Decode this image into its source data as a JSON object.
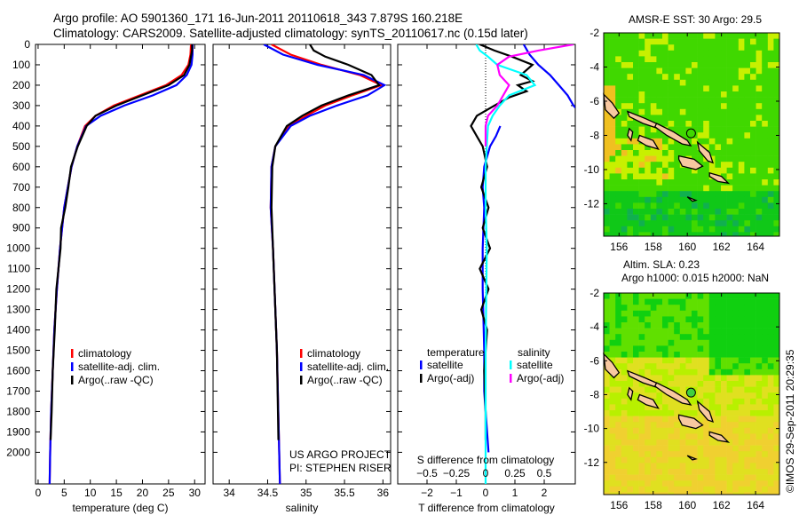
{
  "header": {
    "line1": "Argo profile: AO 5901360_171 16-Jun-2011 20110618_343 7.879S 160.218E",
    "line2": "Climatology: CARS2009. Satellite-adjusted climatology: synTS_20110617.nc (0.15d later)"
  },
  "credit": "©IMOS 29-Sep-2011 20:29:35",
  "project_note": [
    "US ARGO PROJECT",
    "PI: STEPHEN RISER"
  ],
  "colors": {
    "climatology": "#ff0000",
    "satellite": "#0000ff",
    "argo": "#000000",
    "sal_satellite": "#00ffff",
    "sal_argo": "#ff00ff"
  },
  "chart_data": [
    {
      "type": "line",
      "title": "",
      "xlabel": "temperature (deg C)",
      "ylabel": "",
      "xlim": [
        -0.5,
        32
      ],
      "ylim": [
        2155,
        0
      ],
      "xticks": [
        0,
        5,
        10,
        15,
        20,
        25,
        30
      ],
      "yticks": [
        0,
        100,
        200,
        300,
        400,
        500,
        600,
        700,
        800,
        900,
        1000,
        1100,
        1200,
        1300,
        1400,
        1500,
        1600,
        1700,
        1800,
        1900,
        2000
      ],
      "legend": [
        "climatology",
        "satellite-adj. clim.",
        "Argo(..raw -QC)"
      ],
      "legend_placement": "center-left",
      "series": [
        {
          "name": "climatology",
          "color": "#ff0000",
          "depth": [
            0,
            50,
            100,
            150,
            200,
            250,
            300,
            350,
            400,
            500,
            600,
            700,
            800,
            900,
            1000,
            1200,
            1400,
            1600,
            1800,
            2000,
            2155
          ],
          "values": [
            29.3,
            29.2,
            28.8,
            27.5,
            24.5,
            19.5,
            14.5,
            11,
            9,
            7.5,
            6.4,
            5.7,
            5,
            4.6,
            4.2,
            3.6,
            3.1,
            2.8,
            2.5,
            2.3,
            2.2
          ]
        },
        {
          "name": "satellite-adj. clim.",
          "color": "#0000ff",
          "depth": [
            0,
            50,
            100,
            150,
            200,
            250,
            300,
            350,
            400,
            500,
            600,
            700,
            800,
            900,
            1000,
            1200,
            1400,
            1600,
            1800,
            2000,
            2155
          ],
          "values": [
            29.6,
            29.6,
            29.4,
            28.5,
            26.5,
            22,
            16.5,
            12,
            9.2,
            7.5,
            6.4,
            5.7,
            5,
            4.6,
            4.2,
            3.6,
            3.1,
            2.8,
            2.5,
            2.3,
            2.2
          ]
        },
        {
          "name": "Argo(..raw -QC)",
          "color": "#000000",
          "depth": [
            0,
            30,
            100,
            150,
            200,
            250,
            300,
            350,
            400,
            500,
            600,
            700,
            800,
            900,
            1000,
            1200,
            1400,
            1600,
            1800,
            1940
          ],
          "values": [
            29.5,
            29.5,
            29.0,
            28.0,
            25.0,
            20.0,
            15.0,
            11.0,
            9.3,
            7.6,
            6.3,
            5.8,
            5.2,
            4.4,
            4.3,
            3.5,
            3.2,
            2.8,
            2.6,
            2.4
          ]
        }
      ]
    },
    {
      "type": "line",
      "xlabel": "salinity",
      "xlim": [
        33.79,
        36.1
      ],
      "ylim": [
        2155,
        0
      ],
      "xticks": [
        34,
        34.5,
        35,
        35.5,
        36
      ],
      "legend": [
        "climatology",
        "satellite-adj. clim.",
        "Argo(..raw -QC)"
      ],
      "legend_placement": "center-right",
      "series": [
        {
          "name": "climatology",
          "color": "#ff0000",
          "depth": [
            0,
            50,
            100,
            150,
            200,
            250,
            300,
            350,
            400,
            500,
            600,
            800,
            1000,
            1500,
            2000,
            2155
          ],
          "values": [
            34.55,
            34.8,
            35.2,
            35.7,
            35.98,
            35.6,
            35.25,
            35.0,
            34.78,
            34.6,
            34.55,
            34.54,
            34.57,
            34.62,
            34.65,
            34.66
          ]
        },
        {
          "name": "satellite-adj. clim.",
          "color": "#0000ff",
          "depth": [
            0,
            50,
            100,
            150,
            200,
            250,
            300,
            350,
            400,
            500,
            600,
            800,
            1000,
            1500,
            2000,
            2155
          ],
          "values": [
            34.45,
            34.7,
            35.15,
            35.75,
            36.02,
            35.8,
            35.4,
            35.05,
            34.8,
            34.6,
            34.55,
            34.54,
            34.57,
            34.62,
            34.65,
            34.66
          ]
        },
        {
          "name": "Argo(..raw -QC)",
          "color": "#000000",
          "depth": [
            0,
            30,
            60,
            100,
            150,
            200,
            250,
            300,
            350,
            400,
            500,
            600,
            800,
            1000,
            1500,
            1940
          ],
          "values": [
            35.05,
            35.1,
            35.25,
            35.55,
            35.85,
            35.95,
            35.55,
            35.2,
            34.95,
            34.75,
            34.6,
            34.56,
            34.55,
            34.57,
            34.62,
            34.64
          ]
        }
      ]
    },
    {
      "type": "line",
      "xlabel": "T difference from climatology",
      "xlabel2": "S difference from climatology",
      "xlim": [
        -3,
        3.06
      ],
      "ylim": [
        2155,
        0
      ],
      "xticks": [
        -2,
        -1,
        0,
        1,
        2
      ],
      "xticks2": [
        -0.5,
        -0.25,
        0,
        0.25,
        0.5
      ],
      "legend_headers": [
        "temperature",
        "salinity"
      ],
      "legend": [
        "satellite",
        "Argo(-adj)",
        "satellite",
        "Argo(-adj)"
      ],
      "series": [
        {
          "name": "temperature satellite",
          "color": "#0000ff",
          "units": "T",
          "depth": [
            0,
            50,
            100,
            150,
            200,
            250,
            300,
            310
          ],
          "values": [
            1.3,
            1.5,
            1.8,
            2.2,
            2.5,
            2.8,
            3.0,
            3.06
          ]
        },
        {
          "name": "temperature satellite (deep)",
          "color": "#0000ff",
          "units": "T",
          "depth": [
            400,
            450,
            500,
            550,
            600,
            700,
            800,
            1000,
            1200,
            1500,
            1700,
            1800,
            2000
          ],
          "values": [
            0.5,
            0.35,
            0.15,
            0.05,
            -0.05,
            -0.1,
            -0.05,
            -0.1,
            -0.1,
            -0.05,
            -0.05,
            0,
            0.1
          ]
        },
        {
          "name": "temperature Argo(-adj)",
          "color": "#000000",
          "units": "T",
          "depth": [
            0,
            30,
            60,
            100,
            150,
            180,
            200,
            230,
            260,
            300,
            350,
            400,
            450,
            500,
            600,
            700,
            800,
            900,
            1000,
            1100,
            1200,
            1300,
            1400,
            1600,
            1800,
            1940
          ],
          "values": [
            -0.2,
            0.3,
            0.9,
            1.6,
            1.2,
            1.6,
            1.1,
            1.4,
            0.8,
            0.3,
            -0.3,
            -0.5,
            -0.3,
            -0.1,
            0.05,
            -0.15,
            0.1,
            -0.1,
            0.15,
            -0.2,
            0.1,
            -0.15,
            0.05,
            -0.05,
            0,
            0
          ]
        },
        {
          "name": "salinity satellite",
          "color": "#00ffff",
          "units": "S",
          "depth": [
            0,
            30,
            60,
            100,
            150,
            200,
            250,
            300,
            350,
            400,
            500,
            600,
            800,
            1000,
            1500,
            2000,
            2155
          ],
          "values": [
            -0.08,
            -0.05,
            0.02,
            0.1,
            0.35,
            0.42,
            0.2,
            0.12,
            0.06,
            0.02,
            0.01,
            0.0,
            0.0,
            0.01,
            0.0,
            0.0,
            0.0
          ]
        },
        {
          "name": "salinity Argo(-adj)",
          "color": "#ff00ff",
          "units": "S",
          "depth": [
            0,
            30,
            60,
            100,
            150,
            200,
            250,
            300,
            350,
            400,
            450,
            500
          ],
          "values": [
            0.75,
            0.45,
            0.2,
            0.1,
            0.12,
            0.2,
            0.15,
            0.1,
            0.02,
            0.0,
            0.0,
            0.0
          ]
        }
      ]
    },
    {
      "type": "heatmap",
      "title": "AMSR-E SST: 30 Argo: 29.5",
      "xlim": [
        155.1,
        165.4
      ],
      "ylim": [
        -13.9,
        -2
      ],
      "xticks": [
        156,
        158,
        160,
        162,
        164
      ],
      "yticks": [
        -2,
        -4,
        -6,
        -8,
        -10,
        -12
      ],
      "argo_position": [
        160.218,
        -7.879
      ]
    },
    {
      "type": "heatmap",
      "title": "Altim. SLA: 0.23",
      "subtitle": "Argo h1000: 0.015 h2000: NaN",
      "xlim": [
        155.1,
        165.4
      ],
      "ylim": [
        -13.9,
        -2
      ],
      "xticks": [
        156,
        158,
        160,
        162,
        164
      ],
      "yticks": [
        -2,
        -4,
        -6,
        -8,
        -10,
        -12
      ],
      "argo_position": [
        160.218,
        -7.879
      ]
    }
  ]
}
